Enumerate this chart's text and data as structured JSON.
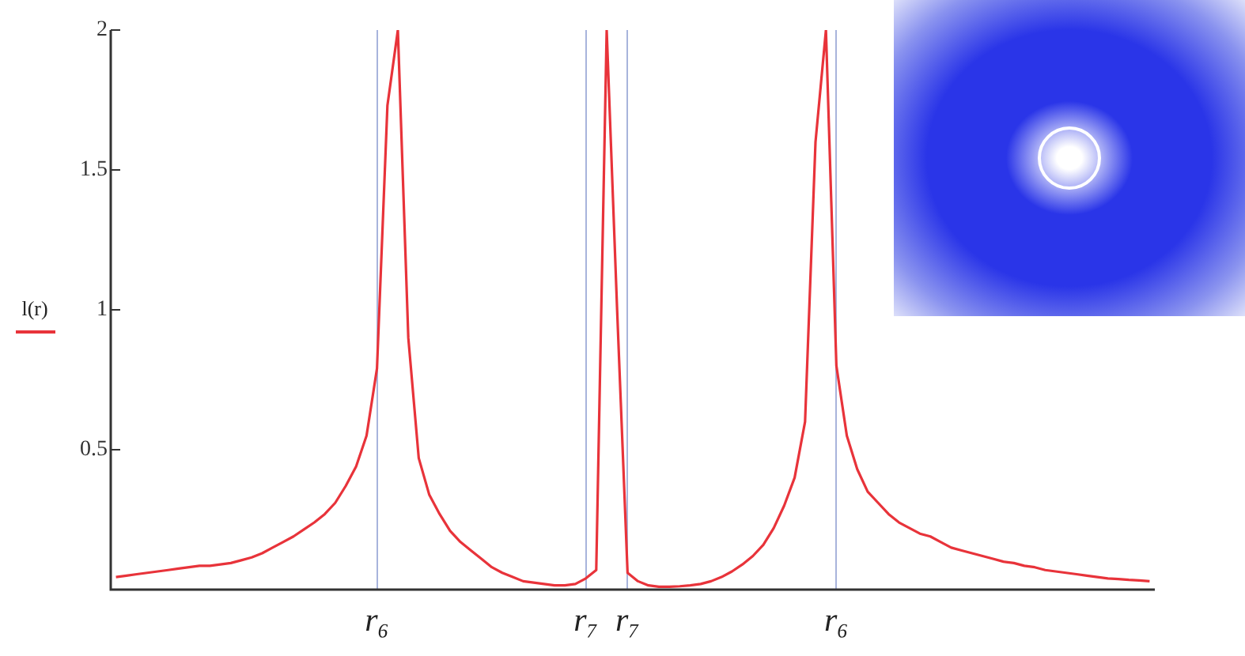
{
  "chart_data": {
    "type": "line",
    "ylabel": "l(r)",
    "categories": [
      null,
      null,
      null,
      null,
      null,
      null,
      null,
      null,
      null,
      null,
      null,
      null,
      null,
      null,
      null,
      null,
      null,
      null,
      null,
      null,
      null,
      null,
      null,
      null,
      null,
      "r₆",
      null,
      null,
      null,
      null,
      null,
      null,
      null,
      null,
      null,
      null,
      null,
      null,
      null,
      null,
      null,
      null,
      null,
      null,
      null,
      "r₇",
      null,
      null,
      null,
      "r₇",
      null,
      null,
      null,
      null,
      null,
      null,
      null,
      null,
      null,
      null,
      null,
      null,
      null,
      null,
      null,
      null,
      null,
      null,
      null,
      "r₆",
      null,
      null,
      null,
      null,
      null,
      null,
      null,
      null,
      null,
      null,
      null,
      null,
      null,
      null,
      null,
      null,
      null,
      null,
      null,
      null,
      null,
      null,
      null,
      null,
      null,
      null,
      null,
      null,
      null,
      null
    ],
    "series": [
      {
        "color": "#e8333a",
        "values": [
          0.045,
          0.05,
          0.055,
          0.06,
          0.065,
          0.07,
          0.075,
          0.08,
          0.085,
          0.085,
          0.09,
          0.095,
          0.105,
          0.115,
          0.13,
          0.15,
          0.17,
          0.19,
          0.215,
          0.24,
          0.27,
          0.31,
          0.37,
          0.44,
          0.55,
          0.79,
          1.73,
          2.0,
          0.9,
          0.47,
          0.34,
          0.27,
          0.21,
          0.17,
          0.14,
          0.11,
          0.08,
          0.06,
          0.045,
          0.03,
          0.025,
          0.02,
          0.015,
          0.015,
          0.02,
          0.04,
          0.07,
          2.0,
          1.0,
          0.06,
          0.03,
          0.015,
          0.01,
          0.01,
          0.012,
          0.015,
          0.02,
          0.03,
          0.045,
          0.065,
          0.09,
          0.12,
          0.16,
          0.22,
          0.3,
          0.4,
          0.6,
          1.6,
          2.0,
          0.8,
          0.55,
          0.43,
          0.35,
          0.31,
          0.27,
          0.24,
          0.22,
          0.2,
          0.19,
          0.17,
          0.15,
          0.14,
          0.13,
          0.12,
          0.11,
          0.1,
          0.095,
          0.085,
          0.08,
          0.07,
          0.065,
          0.06,
          0.055,
          0.05,
          0.045,
          0.04,
          0.038,
          0.035,
          0.033,
          0.03
        ]
      }
    ],
    "ylim": [
      0,
      2
    ],
    "yticks": [
      0.5,
      1,
      1.5,
      2
    ],
    "grid": "x",
    "legend": false,
    "marker": "none",
    "line_style": "solid"
  }
}
